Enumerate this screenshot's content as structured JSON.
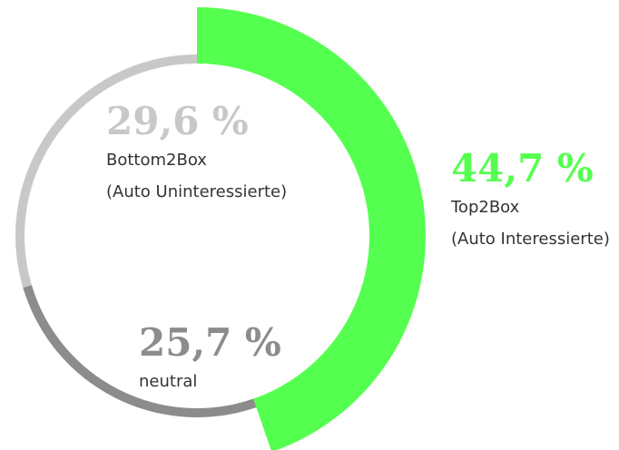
{
  "chart_data": {
    "type": "donut",
    "categories": [
      "Top2Box",
      "neutral",
      "Bottom2Box"
    ],
    "descriptions": [
      "(Auto Interessierte)",
      null,
      "(Auto Uninteressierte)"
    ],
    "values": [
      44.7,
      25.7,
      29.6
    ],
    "value_labels": [
      "44,7 %",
      "25,7 %",
      "29,6 %"
    ],
    "colors": [
      "#55ff4f",
      "#8c8c8c",
      "#c8c8c8"
    ]
  }
}
